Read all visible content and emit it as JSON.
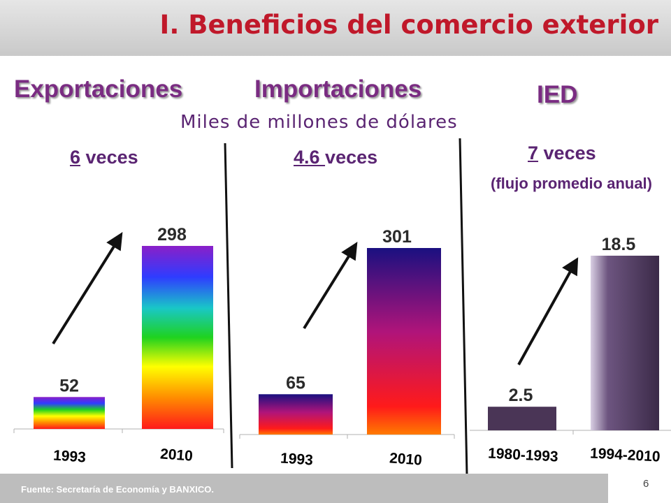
{
  "slide": {
    "title": "I. Beneficios del comercio exterior",
    "units": "Miles de millones de dólares",
    "source": "Fuente: Secretaría de Economía y BANXICO.",
    "page_number": "6"
  },
  "headings": {
    "exports": "Exportaciones",
    "imports": "Importaciones",
    "fdi": "IED"
  },
  "multipliers": {
    "exports": {
      "value": "6",
      "word": " veces"
    },
    "imports": {
      "value": "4.6 ",
      "word": "veces"
    },
    "fdi": {
      "value": "7",
      "word": " veces",
      "note": "(flujo promedio anual)"
    }
  },
  "colors": {
    "title": "#c0182a",
    "heading": "#7a2c82",
    "text": "#5a2472",
    "fdi_bar": "#4a3556"
  },
  "chart_data": [
    {
      "type": "bar",
      "name": "exports",
      "categories": [
        "1993",
        "2010"
      ],
      "values": [
        52,
        298
      ],
      "value_labels": [
        "52",
        "298"
      ]
    },
    {
      "type": "bar",
      "name": "imports",
      "categories": [
        "1993",
        "2010"
      ],
      "values": [
        65,
        301
      ],
      "value_labels": [
        "65",
        "301"
      ]
    },
    {
      "type": "bar",
      "name": "fdi",
      "categories": [
        "1980-1993",
        "1994-2010"
      ],
      "values": [
        2.5,
        18.5
      ],
      "value_labels": [
        "2.5",
        "18.5"
      ]
    }
  ]
}
